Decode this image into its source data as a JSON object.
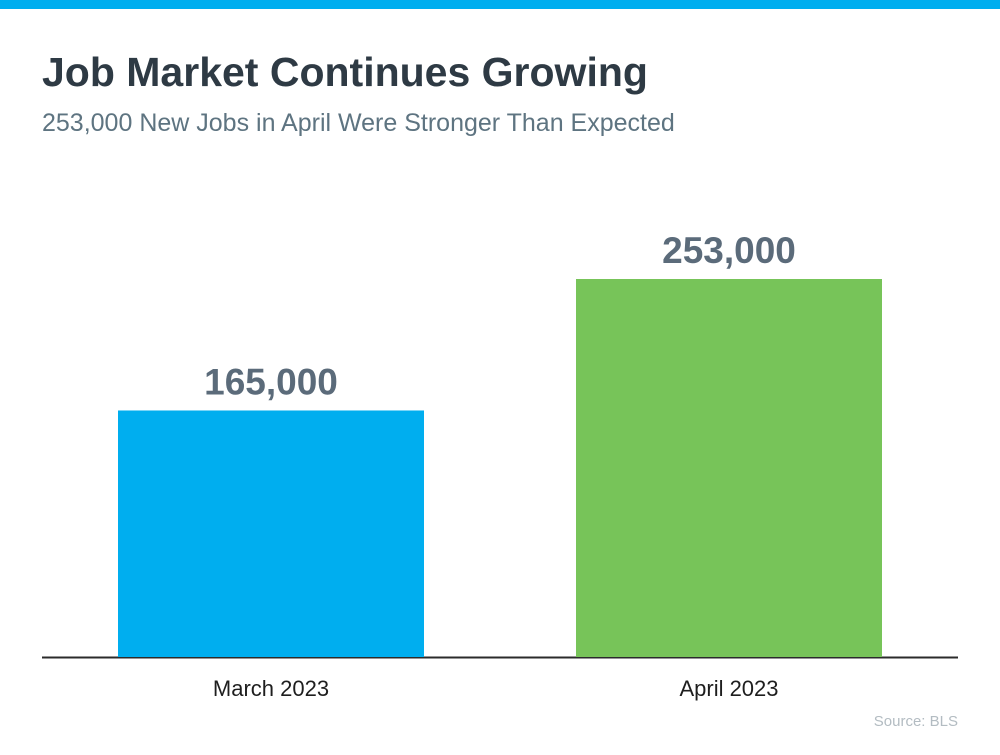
{
  "chart_data": {
    "type": "bar",
    "title": "Job Market Continues Growing",
    "subtitle": "253,000 New Jobs in April Were Stronger Than Expected",
    "categories": [
      "March 2023",
      "April 2023"
    ],
    "values": [
      165000,
      253000
    ],
    "value_labels": [
      "165,000",
      "253,000"
    ],
    "colors": [
      "#00aeef",
      "#77c459"
    ],
    "source": "Source: BLS"
  }
}
